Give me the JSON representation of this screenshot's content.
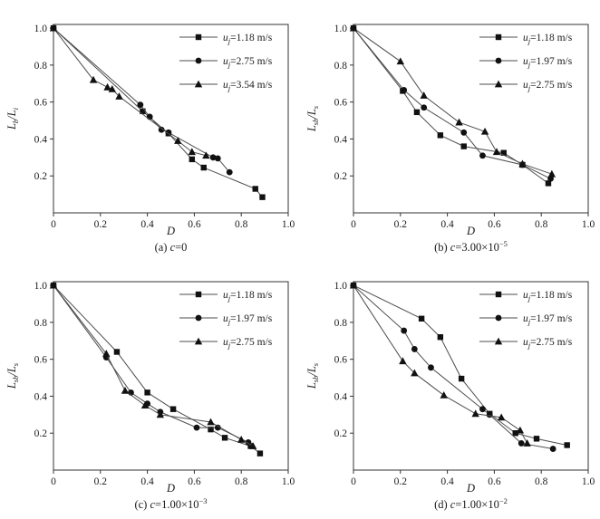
{
  "figure": {
    "background": "#ffffff",
    "colors": {
      "line": "#4d4d4d",
      "marker": "#111111",
      "axis": "#333333",
      "text": "#1a1a1a"
    }
  },
  "chart_data": [
    {
      "id": "a",
      "type": "line",
      "caption": {
        "index": "(a) ",
        "var": "c",
        "value": "=0",
        "sup": ""
      },
      "xlabel": "D",
      "ylabel": "L_b/L_i",
      "xlim": [
        0,
        1.0
      ],
      "ylim": [
        0,
        1.02
      ],
      "xticks": [
        0,
        0.2,
        0.4,
        0.6,
        0.8,
        1.0
      ],
      "xtick_labels": [
        "0",
        "0.2",
        "0.4",
        "0.6",
        "0.8",
        "1.0"
      ],
      "yticks": [
        0.2,
        0.4,
        0.6,
        0.8,
        1.0
      ],
      "ytick_labels": [
        "0.2",
        "0.4",
        "0.6",
        "0.8",
        "1.0"
      ],
      "legend_position": "top-right",
      "grid": false,
      "series": [
        {
          "name": "u_j=1.18 m/s",
          "marker": "square",
          "points": [
            [
              0,
              1.0
            ],
            [
              0.38,
              0.55
            ],
            [
              0.49,
              0.43
            ],
            [
              0.59,
              0.29
            ],
            [
              0.64,
              0.245
            ],
            [
              0.86,
              0.13
            ],
            [
              0.89,
              0.085
            ]
          ]
        },
        {
          "name": "u_j=2.75 m/s",
          "marker": "circle",
          "points": [
            [
              0,
              1.0
            ],
            [
              0.37,
              0.585
            ],
            [
              0.41,
              0.52
            ],
            [
              0.46,
              0.45
            ],
            [
              0.49,
              0.435
            ],
            [
              0.68,
              0.3
            ],
            [
              0.7,
              0.295
            ],
            [
              0.75,
              0.22
            ]
          ]
        },
        {
          "name": "u_j=3.54 m/s",
          "marker": "triangle",
          "points": [
            [
              0,
              1.0
            ],
            [
              0.17,
              0.72
            ],
            [
              0.23,
              0.68
            ],
            [
              0.25,
              0.67
            ],
            [
              0.28,
              0.63
            ],
            [
              0.53,
              0.39
            ],
            [
              0.59,
              0.33
            ],
            [
              0.65,
              0.31
            ]
          ]
        }
      ]
    },
    {
      "id": "b",
      "type": "line",
      "caption": {
        "index": "(b) ",
        "var": "c",
        "value": "=3.00×10",
        "sup": "−5"
      },
      "xlabel": "D",
      "ylabel": "L_sb/L_s",
      "xlim": [
        0,
        1.0
      ],
      "ylim": [
        0,
        1.02
      ],
      "xticks": [
        0,
        0.2,
        0.4,
        0.6,
        0.8,
        1.0
      ],
      "xtick_labels": [
        "0",
        "0.2",
        "0.4",
        "0.6",
        "0.8",
        "1.0"
      ],
      "yticks": [
        0.2,
        0.4,
        0.6,
        0.8,
        1.0
      ],
      "ytick_labels": [
        "0.2",
        "0.4",
        "0.6",
        "0.8",
        "1.0"
      ],
      "legend_position": "top-right",
      "grid": false,
      "series": [
        {
          "name": "u_j=1.18 m/s",
          "marker": "square",
          "points": [
            [
              0,
              1.0
            ],
            [
              0.21,
              0.66
            ],
            [
              0.27,
              0.545
            ],
            [
              0.37,
              0.42
            ],
            [
              0.47,
              0.36
            ],
            [
              0.64,
              0.325
            ],
            [
              0.72,
              0.26
            ],
            [
              0.83,
              0.16
            ]
          ]
        },
        {
          "name": "u_j=1.97 m/s",
          "marker": "circle",
          "points": [
            [
              0,
              1.0
            ],
            [
              0.215,
              0.665
            ],
            [
              0.3,
              0.57
            ],
            [
              0.47,
              0.435
            ],
            [
              0.55,
              0.31
            ],
            [
              0.72,
              0.26
            ],
            [
              0.84,
              0.185
            ]
          ]
        },
        {
          "name": "u_j=2.75 m/s",
          "marker": "triangle",
          "points": [
            [
              0,
              1.0
            ],
            [
              0.2,
              0.82
            ],
            [
              0.3,
              0.635
            ],
            [
              0.45,
              0.49
            ],
            [
              0.56,
              0.44
            ],
            [
              0.61,
              0.33
            ],
            [
              0.72,
              0.265
            ],
            [
              0.845,
              0.21
            ]
          ]
        }
      ]
    },
    {
      "id": "c",
      "type": "line",
      "caption": {
        "index": "(c) ",
        "var": "c",
        "value": "=1.00×10",
        "sup": "−3"
      },
      "xlabel": "D",
      "ylabel": "L_sb/L_s",
      "xlim": [
        0,
        1.0
      ],
      "ylim": [
        0,
        1.02
      ],
      "xticks": [
        0,
        0.2,
        0.4,
        0.6,
        0.8,
        1.0
      ],
      "xtick_labels": [
        "0",
        "0.2",
        "0.4",
        "0.6",
        "0.8",
        "1.0"
      ],
      "yticks": [
        0.2,
        0.4,
        0.6,
        0.8,
        1.0
      ],
      "ytick_labels": [
        "0.2",
        "0.4",
        "0.6",
        "0.8",
        "1.0"
      ],
      "legend_position": "top-right",
      "grid": false,
      "series": [
        {
          "name": "u_j=1.18 m/s",
          "marker": "square",
          "points": [
            [
              0,
              1.0
            ],
            [
              0.27,
              0.64
            ],
            [
              0.4,
              0.42
            ],
            [
              0.51,
              0.33
            ],
            [
              0.67,
              0.22
            ],
            [
              0.73,
              0.175
            ],
            [
              0.84,
              0.13
            ],
            [
              0.88,
              0.09
            ]
          ]
        },
        {
          "name": "u_j=1.97 m/s",
          "marker": "circle",
          "points": [
            [
              0,
              1.0
            ],
            [
              0.225,
              0.61
            ],
            [
              0.33,
              0.42
            ],
            [
              0.4,
              0.36
            ],
            [
              0.455,
              0.315
            ],
            [
              0.61,
              0.23
            ],
            [
              0.7,
              0.23
            ],
            [
              0.83,
              0.15
            ]
          ]
        },
        {
          "name": "u_j=2.75 m/s",
          "marker": "triangle",
          "points": [
            [
              0,
              1.0
            ],
            [
              0.225,
              0.63
            ],
            [
              0.305,
              0.43
            ],
            [
              0.39,
              0.35
            ],
            [
              0.455,
              0.3
            ],
            [
              0.67,
              0.26
            ],
            [
              0.8,
              0.165
            ],
            [
              0.85,
              0.13
            ]
          ]
        }
      ]
    },
    {
      "id": "d",
      "type": "line",
      "caption": {
        "index": "(d) ",
        "var": "c",
        "value": "=1.00×10",
        "sup": "−2"
      },
      "xlabel": "D",
      "ylabel": "L_sb/L_s",
      "xlim": [
        0,
        1.0
      ],
      "ylim": [
        0,
        1.02
      ],
      "xticks": [
        0,
        0.2,
        0.4,
        0.6,
        0.8,
        1.0
      ],
      "xtick_labels": [
        "0",
        "0.2",
        "0.4",
        "0.6",
        "0.8",
        "1.0"
      ],
      "yticks": [
        0.2,
        0.4,
        0.6,
        0.8,
        1.0
      ],
      "ytick_labels": [
        "0.2",
        "0.4",
        "0.6",
        "0.8",
        "1.0"
      ],
      "legend_position": "top-right",
      "grid": false,
      "series": [
        {
          "name": "u_j=1.18 m/s",
          "marker": "square",
          "points": [
            [
              0,
              1.0
            ],
            [
              0.29,
              0.82
            ],
            [
              0.37,
              0.72
            ],
            [
              0.46,
              0.495
            ],
            [
              0.58,
              0.305
            ],
            [
              0.69,
              0.2
            ],
            [
              0.78,
              0.17
            ],
            [
              0.91,
              0.135
            ]
          ]
        },
        {
          "name": "u_j=1.97 m/s",
          "marker": "circle",
          "points": [
            [
              0,
              1.0
            ],
            [
              0.215,
              0.755
            ],
            [
              0.26,
              0.655
            ],
            [
              0.33,
              0.555
            ],
            [
              0.55,
              0.33
            ],
            [
              0.58,
              0.3
            ],
            [
              0.715,
              0.145
            ],
            [
              0.85,
              0.115
            ]
          ]
        },
        {
          "name": "u_j=2.75 m/s",
          "marker": "triangle",
          "points": [
            [
              0,
              1.0
            ],
            [
              0.21,
              0.59
            ],
            [
              0.26,
              0.525
            ],
            [
              0.385,
              0.405
            ],
            [
              0.52,
              0.305
            ],
            [
              0.63,
              0.285
            ],
            [
              0.71,
              0.215
            ],
            [
              0.74,
              0.145
            ]
          ]
        }
      ]
    }
  ]
}
